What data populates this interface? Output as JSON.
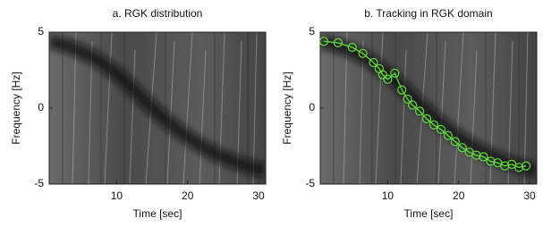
{
  "chart_data": [
    {
      "type": "image",
      "title": "a. RGK distribution",
      "xlabel": "Time [sec]",
      "ylabel": "Frequency [Hz]",
      "xlim": [
        0.5,
        31
      ],
      "ylim": [
        -5,
        5
      ],
      "xticks": [
        10,
        20,
        30
      ],
      "yticks": [
        -5,
        0,
        5
      ]
    },
    {
      "type": "line",
      "title": "b. Tracking in RGK domain",
      "xlabel": "Time [sec]",
      "ylabel": "Frequency [Hz]",
      "xlim": [
        0.5,
        31
      ],
      "ylim": [
        -5,
        5
      ],
      "xticks": [
        10,
        20,
        30
      ],
      "yticks": [
        -5,
        0,
        5
      ],
      "color": "#5ee03a",
      "x": [
        1,
        3,
        5,
        6.5,
        8,
        8.8,
        9.3,
        10,
        11,
        12,
        12.8,
        13.5,
        14.5,
        15.5,
        16.5,
        17.5,
        18.5,
        19.5,
        20.5,
        21.5,
        22.5,
        23.5,
        24.5,
        25.5,
        26.5,
        27.5,
        28.5,
        29.5
      ],
      "values": [
        4.4,
        4.3,
        4,
        3.6,
        3.0,
        2.6,
        2.2,
        1.9,
        2.3,
        1.2,
        0.6,
        0.2,
        -0.2,
        -0.7,
        -1.1,
        -1.4,
        -1.8,
        -2.2,
        -2.6,
        -2.9,
        -3.1,
        -3.2,
        -3.5,
        -3.6,
        -3.8,
        -3.7,
        -3.9,
        -3.8
      ]
    }
  ]
}
